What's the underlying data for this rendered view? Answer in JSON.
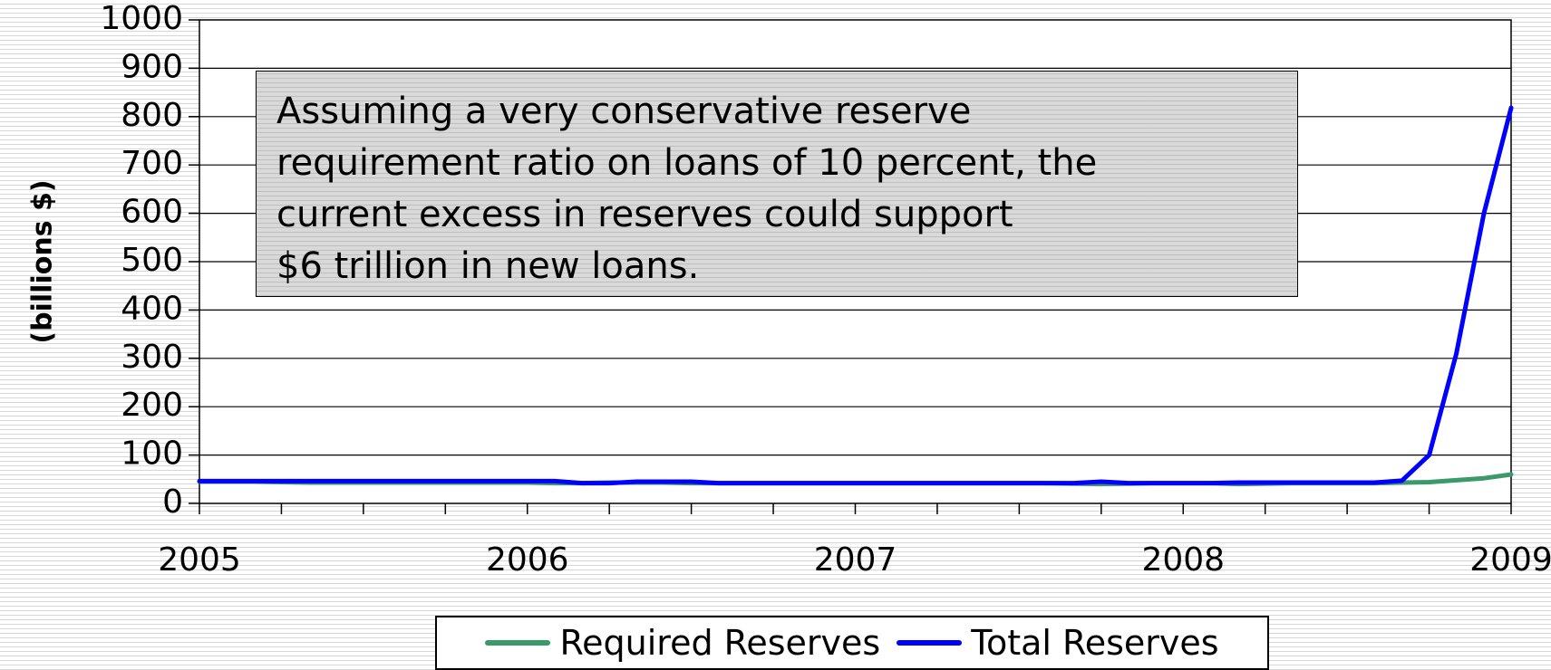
{
  "chart_data": {
    "type": "line",
    "ylabel": "(billions $)",
    "xlabel": "",
    "ylim": [
      0,
      1000
    ],
    "yticks": [
      0,
      100,
      200,
      300,
      400,
      500,
      600,
      700,
      800,
      900,
      1000
    ],
    "xlim": [
      2005.0,
      2009.0
    ],
    "xticks": [
      "2005",
      "2006",
      "2007",
      "2008",
      "2009"
    ],
    "grid": "horizontal",
    "legend_position": "bottom",
    "x": [
      2005.0,
      2005.083,
      2005.167,
      2005.25,
      2005.333,
      2005.417,
      2005.5,
      2005.583,
      2005.667,
      2005.75,
      2005.833,
      2005.917,
      2006.0,
      2006.083,
      2006.167,
      2006.25,
      2006.333,
      2006.417,
      2006.5,
      2006.583,
      2006.667,
      2006.75,
      2006.833,
      2006.917,
      2007.0,
      2007.083,
      2007.167,
      2007.25,
      2007.333,
      2007.417,
      2007.5,
      2007.583,
      2007.667,
      2007.75,
      2007.833,
      2007.917,
      2008.0,
      2008.083,
      2008.167,
      2008.25,
      2008.333,
      2008.417,
      2008.5,
      2008.583,
      2008.667,
      2008.75,
      2008.833,
      2008.917,
      2009.0
    ],
    "series": [
      {
        "name": "Required Reserves",
        "color": "#3a9a6a",
        "values": [
          45,
          45,
          45,
          44,
          43,
          43,
          43,
          43,
          43,
          43,
          43,
          43,
          43,
          42,
          42,
          43,
          43,
          43,
          42,
          42,
          42,
          42,
          42,
          42,
          42,
          42,
          42,
          42,
          42,
          42,
          42,
          42,
          41,
          40,
          41,
          42,
          42,
          42,
          40,
          41,
          42,
          42,
          42,
          42,
          43,
          44,
          48,
          52,
          60
        ]
      },
      {
        "name": "Total Reserves",
        "color": "#0000ff",
        "values": [
          46,
          46,
          46,
          46,
          46,
          46,
          46,
          46,
          46,
          46,
          46,
          46,
          46,
          46,
          42,
          42,
          45,
          45,
          45,
          42,
          42,
          42,
          42,
          42,
          42,
          42,
          42,
          42,
          42,
          42,
          42,
          42,
          42,
          45,
          42,
          42,
          42,
          42,
          43,
          43,
          43,
          43,
          43,
          43,
          47,
          100,
          310,
          600,
          818
        ]
      }
    ],
    "annotation": "Assuming a very conservative reserve\nrequirement ratio on loans of 10 percent, the\ncurrent excess in reserves could support\n$6 trillion in new loans."
  }
}
